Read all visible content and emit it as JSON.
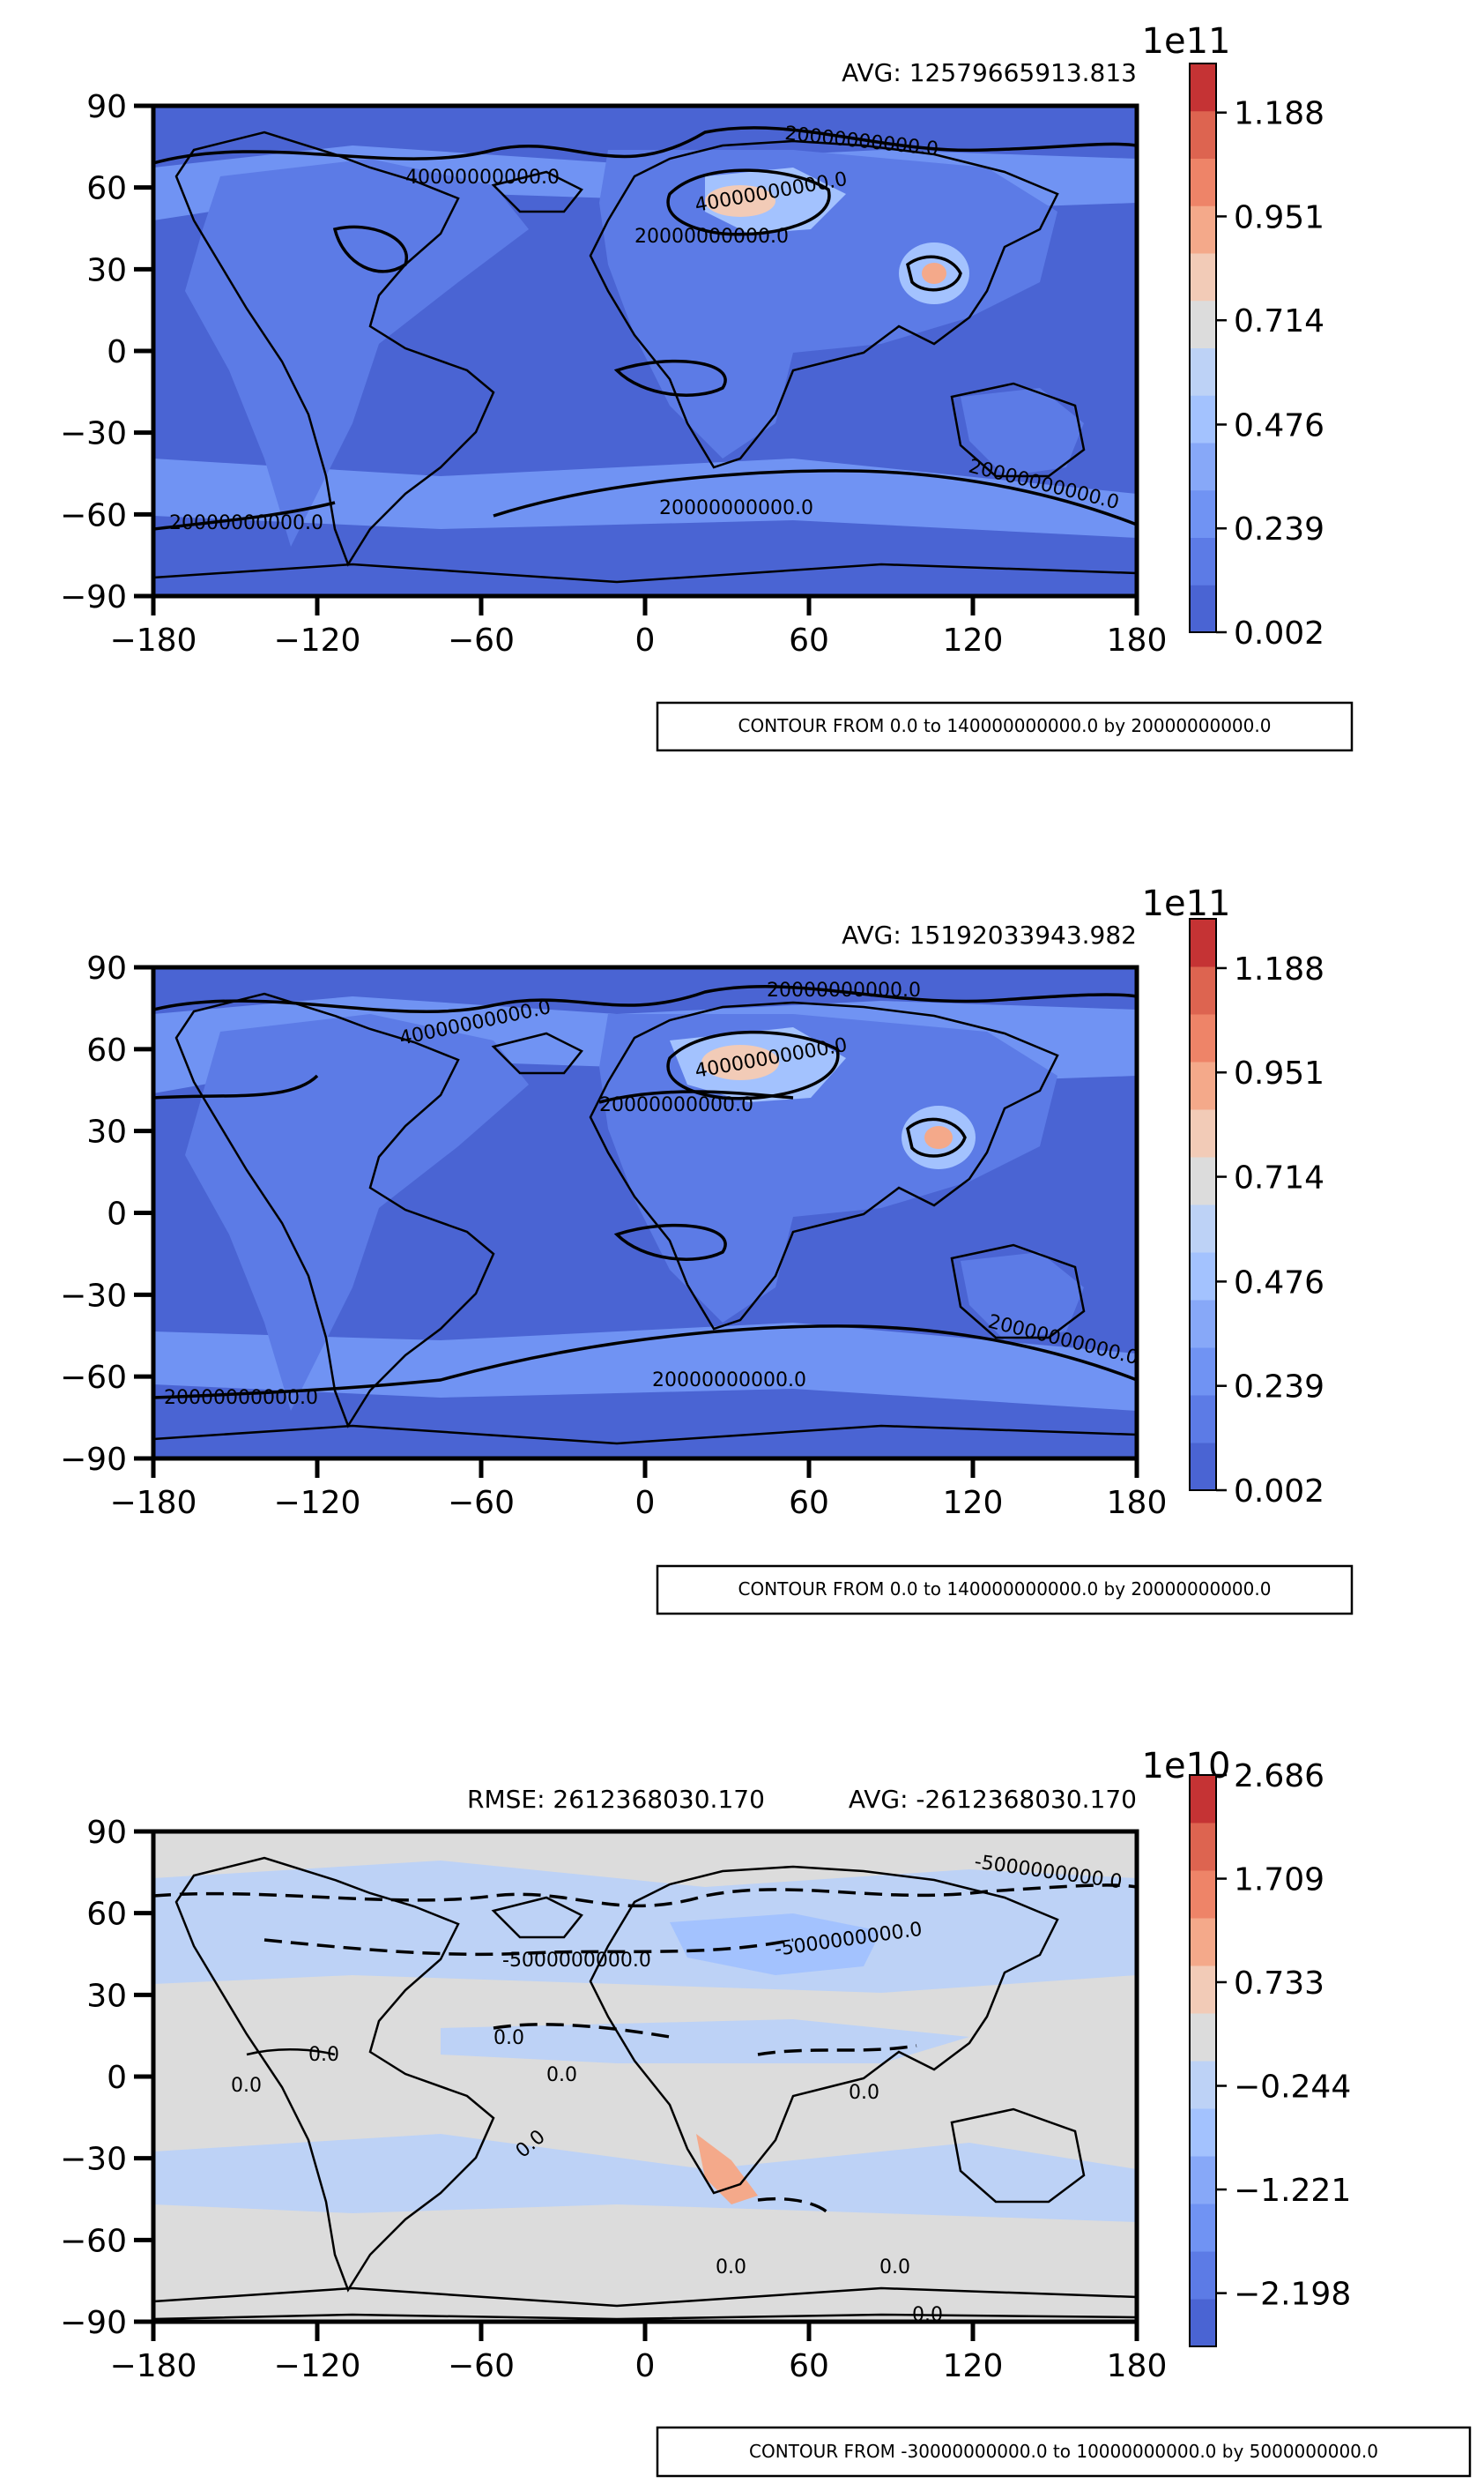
{
  "chart_data": [
    {
      "type": "heatmap",
      "title": "",
      "xlabel": "",
      "ylabel": "",
      "xlim": [
        -180,
        180
      ],
      "ylim": [
        -90,
        90
      ],
      "x_ticks": [
        "−180",
        "−120",
        "−60",
        "0",
        "60",
        "120",
        "180"
      ],
      "y_ticks": [
        "90",
        "60",
        "30",
        "0",
        "−30",
        "−60",
        "−90"
      ],
      "stat_right": "AVG: 12579665913.813",
      "stat_left": "",
      "colorbar_exponent": "1e11",
      "colorbar_ticks": [
        "1.188",
        "0.951",
        "0.714",
        "0.476",
        "0.239",
        "0.002"
      ],
      "colorbar_range": [
        0.002,
        1.3
      ],
      "contour_labels": [
        "20000000000.0",
        "20000000000.0",
        "20000000000.0",
        "20000000000.0",
        "40000000000.0",
        "40000000000.0",
        "20000000000.0"
      ],
      "caption": "CONTOUR FROM 0.0 to 140000000000.0 by 20000000000.0"
    },
    {
      "type": "heatmap",
      "title": "",
      "xlabel": "",
      "ylabel": "",
      "xlim": [
        -180,
        180
      ],
      "ylim": [
        -90,
        90
      ],
      "x_ticks": [
        "−180",
        "−120",
        "−60",
        "0",
        "60",
        "120",
        "180"
      ],
      "y_ticks": [
        "90",
        "60",
        "30",
        "0",
        "−30",
        "−60",
        "−90"
      ],
      "stat_right": "AVG: 15192033943.982",
      "stat_left": "",
      "colorbar_exponent": "1e11",
      "colorbar_ticks": [
        "1.188",
        "0.951",
        "0.714",
        "0.476",
        "0.239",
        "0.002"
      ],
      "colorbar_range": [
        0.002,
        1.3
      ],
      "contour_labels": [
        "20000000000.0",
        "20000000000.0",
        "20000000000.0",
        "20000000000.0",
        "40000000000.0",
        "40000000000.0",
        "20000000000.0"
      ],
      "caption": "CONTOUR FROM 0.0 to 140000000000.0 by 20000000000.0"
    },
    {
      "type": "heatmap",
      "title": "",
      "xlabel": "",
      "ylabel": "",
      "xlim": [
        -180,
        180
      ],
      "ylim": [
        -90,
        90
      ],
      "x_ticks": [
        "−180",
        "−120",
        "−60",
        "0",
        "60",
        "120",
        "180"
      ],
      "y_ticks": [
        "90",
        "60",
        "30",
        "0",
        "−30",
        "−60",
        "−90"
      ],
      "stat_right": "AVG: -2612368030.170",
      "stat_left": "RMSE: 2612368030.170",
      "colorbar_exponent": "1e10",
      "colorbar_ticks": [
        "2.686",
        "1.709",
        "0.733",
        "−0.244",
        "−1.221",
        "−2.198"
      ],
      "colorbar_range": [
        -2.7,
        2.686
      ],
      "contour_labels": [
        "-5000000000.0",
        "-5000000000.0",
        "-5000000000.0",
        "0.0",
        "0.0",
        "0.0",
        "0.0",
        "0.0",
        "0.0",
        "0.0",
        "0.0",
        "0.0"
      ],
      "caption": "CONTOUR FROM -30000000000.0 to 10000000000.0 by 5000000000.0"
    }
  ],
  "colors": {
    "colorbar": [
      "#4a64d3",
      "#5c7be6",
      "#7093f3",
      "#87a8f8",
      "#a3c2fe",
      "#bdd2f6",
      "#dcdcdc",
      "#f2cbb7",
      "#f4a98a",
      "#ee8468",
      "#dd6450",
      "#c53334"
    ],
    "ocean_low": "#4a64d3",
    "land_low": "#5c7be6",
    "diff_bg": "#dcdcdc",
    "diff_neg": "#bdd2f6"
  }
}
